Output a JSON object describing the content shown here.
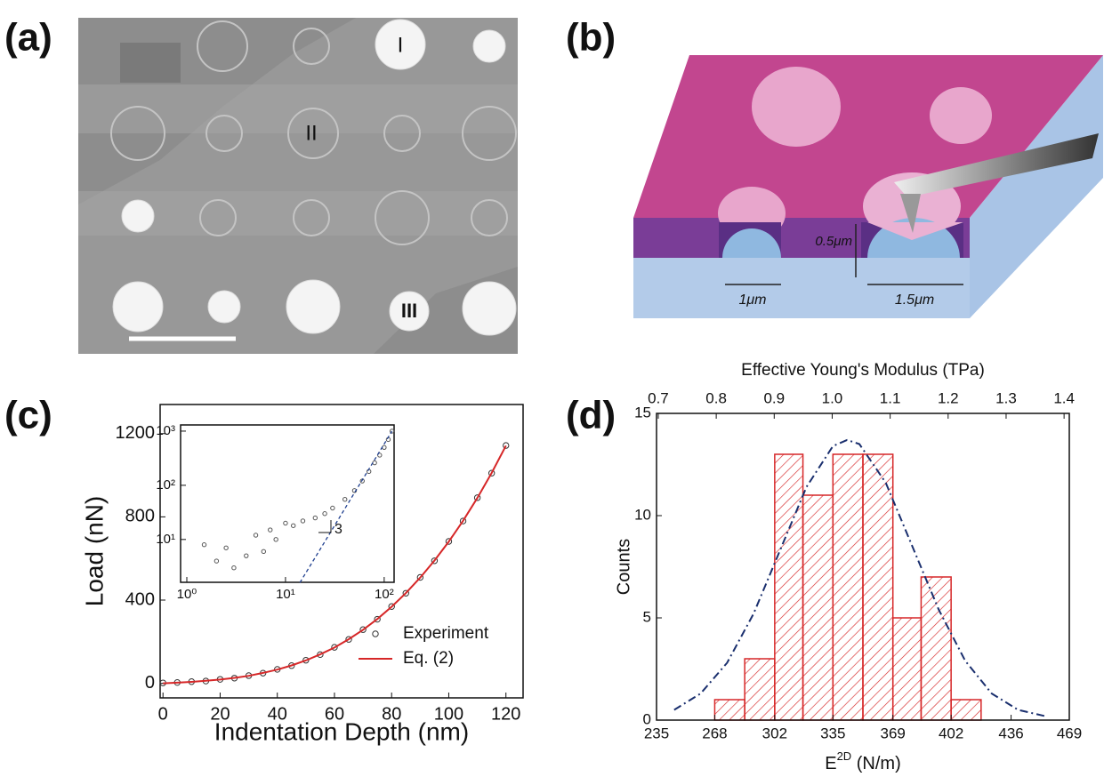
{
  "panel_labels": [
    "(a)",
    "(b)",
    "(c)",
    "(d)"
  ],
  "sem_image": {
    "markers": [
      "I",
      "II",
      "III"
    ]
  },
  "schematic": {
    "dimensions": [
      "0.5μm",
      "1μm",
      "1.5μm"
    ]
  },
  "chart_data": [
    {
      "type": "scatter",
      "xlabel": "Indentation Depth (nm)",
      "ylabel": "Load (nN)",
      "x": [
        0,
        5,
        10,
        15,
        20,
        25,
        30,
        35,
        40,
        45,
        50,
        55,
        60,
        65,
        70,
        75,
        80,
        85,
        90,
        95,
        100,
        105,
        110,
        115,
        120
      ],
      "series": [
        {
          "name": "Experiment",
          "color": "#333333",
          "mode": "markers",
          "values": [
            2,
            4,
            8,
            11,
            19,
            25,
            37,
            49,
            67,
            85,
            111,
            138,
            173,
            211,
            258,
            308,
            369,
            433,
            509,
            589,
            682,
            780,
            892,
            1010,
            1143
          ]
        },
        {
          "name": "Eq. (2)",
          "color": "#d62728",
          "mode": "line",
          "values": [
            0,
            3,
            7,
            12,
            18,
            26,
            36,
            50,
            66,
            86,
            110,
            139,
            172,
            212,
            257,
            309,
            368,
            434,
            508,
            590,
            681,
            781,
            891,
            1011,
            1142
          ]
        }
      ],
      "xlim": [
        -1,
        126
      ],
      "xticks": [
        0,
        20,
        40,
        60,
        80,
        100,
        120
      ],
      "ylim": [
        -70,
        1340
      ],
      "yticks": [
        0,
        400,
        800,
        1200
      ],
      "legend": "lower right"
    },
    {
      "type": "scatter",
      "log_x": true,
      "log_y": true,
      "series": [
        {
          "color": "#555555",
          "mode": "markers",
          "x": [
            1.5,
            2,
            2.5,
            3,
            4,
            5,
            6,
            7,
            8,
            10,
            12,
            15,
            20,
            25,
            30,
            40,
            50,
            60,
            70,
            80,
            90,
            100,
            110,
            120
          ],
          "values": [
            8,
            4,
            7,
            3,
            5,
            12,
            6,
            15,
            10,
            20,
            18,
            22,
            25,
            30,
            38,
            55,
            80,
            120,
            180,
            260,
            360,
            500,
            700,
            1000
          ]
        },
        {
          "color": "#1f3f8f",
          "mode": "dashed",
          "x": [
            14,
            120
          ],
          "values": [
            1.6,
            1000
          ]
        }
      ],
      "annotation": "3",
      "xlim": [
        0.865,
        126
      ],
      "xticks": [
        {
          "value": 1,
          "label": "10⁰"
        },
        {
          "value": 10,
          "label": "10¹"
        },
        {
          "value": 100,
          "label": "10²"
        }
      ],
      "ylim": [
        1.62,
        1300
      ],
      "yticks": [
        {
          "value": 10,
          "label": "10¹"
        },
        {
          "value": 100,
          "label": "10²"
        },
        {
          "value": 1000,
          "label": "10³"
        }
      ]
    },
    {
      "type": "histogram",
      "title": "Effective Young's Modulus (TPa)",
      "xlabel_parts": [
        "E",
        "2D",
        " (N/m)"
      ],
      "ylabel": "Counts",
      "bins": [
        268,
        285,
        302,
        318,
        335,
        352,
        369,
        385,
        402,
        419
      ],
      "values": [
        1,
        3,
        13,
        11,
        13,
        13,
        5,
        7,
        1
      ],
      "color": "#d62728",
      "fit": {
        "color": "#1a2f6e",
        "x": [
          245,
          260,
          275,
          290,
          305,
          320,
          335,
          343,
          350,
          365,
          380,
          395,
          410,
          425,
          440,
          455
        ],
        "values": [
          0.5,
          1.3,
          2.8,
          5.2,
          8.3,
          11.4,
          13.4,
          13.7,
          13.5,
          11.6,
          8.5,
          5.4,
          2.9,
          1.3,
          0.5,
          0.2
        ]
      },
      "xlim": [
        235,
        469
      ],
      "xticks": [
        235,
        268,
        302,
        335,
        369,
        402,
        436,
        469
      ],
      "ylim": [
        0,
        15
      ],
      "yticks": [
        0,
        5,
        10,
        15
      ],
      "x2lim": [
        0.697,
        1.409
      ],
      "x2ticks": [
        0.7,
        0.8,
        0.9,
        {
          "value": 1,
          "label": "1.0"
        },
        1.1,
        1.2,
        1.3,
        1.4
      ]
    }
  ]
}
